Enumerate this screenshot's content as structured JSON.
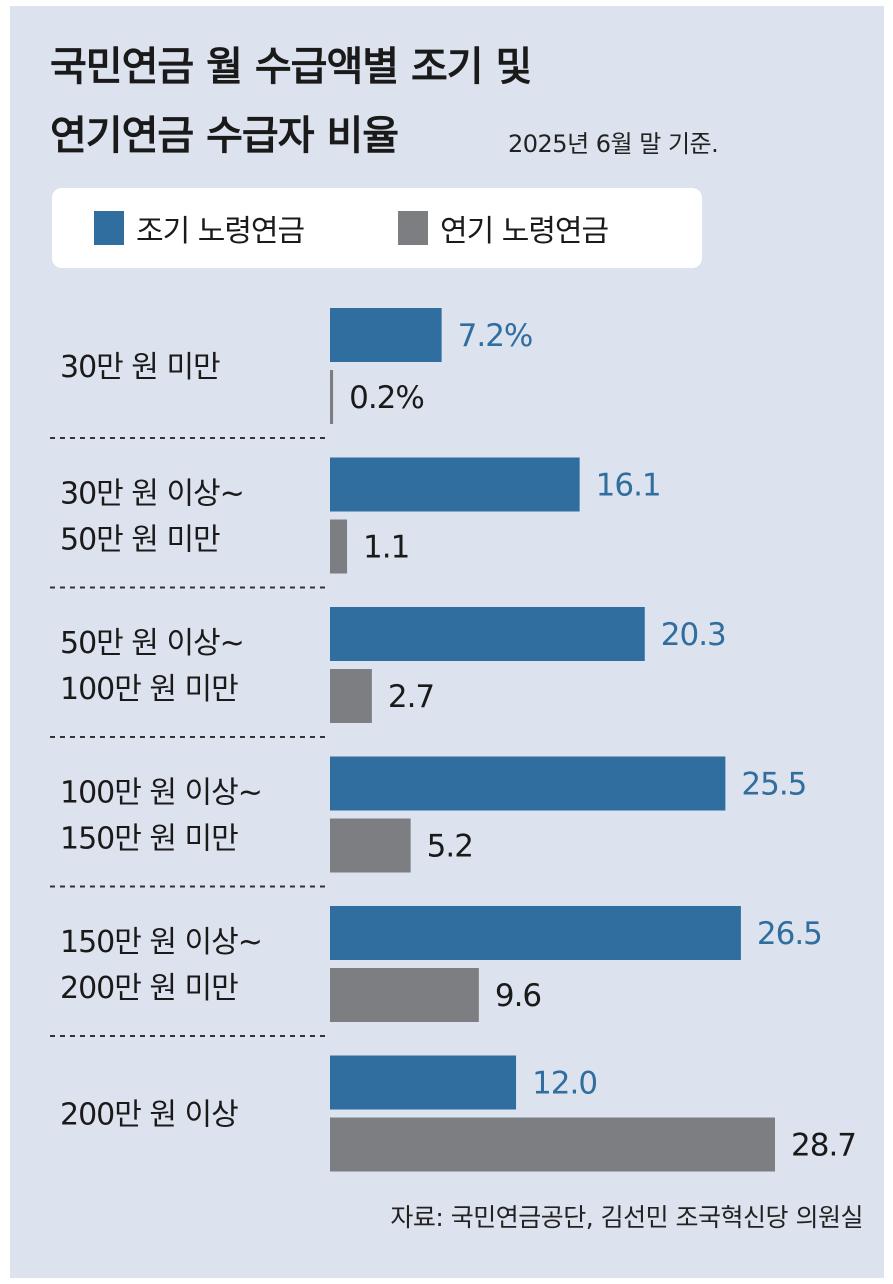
{
  "title_lines": [
    "국민연금 월 수급액별 조기 및",
    "연기연금 수급자 비율"
  ],
  "subtitle": "2025년 6월 말 기준.",
  "source": "자료: 국민연금공단, 김선민 조국혁신당 의원실",
  "colors": {
    "early": "#2f6e9f",
    "late": "#7d7e82",
    "background": "#dde3ee",
    "divider": "#333333"
  },
  "legend": [
    {
      "name": "조기 노령연금",
      "color": "#2f6e9f"
    },
    {
      "name": "연기 노령연금",
      "color": "#7d7e82"
    }
  ],
  "chart_data": {
    "type": "bar",
    "orientation": "horizontal",
    "title": "국민연금 월 수급액별 조기 및 연기연금 수급자 비율",
    "subtitle": "2025년 6월 말 기준.",
    "unit": "%",
    "categories": [
      [
        "30만 원 미만"
      ],
      [
        "30만 원 이상~",
        "50만 원 미만"
      ],
      [
        "50만 원 이상~",
        "100만 원 미만"
      ],
      [
        "100만 원 이상~",
        "150만 원 미만"
      ],
      [
        "150만 원 이상~",
        "200만 원 미만"
      ],
      [
        "200만 원 이상"
      ]
    ],
    "series": [
      {
        "name": "조기 노령연금",
        "color": "#2f6e9f",
        "values": [
          7.2,
          16.1,
          20.3,
          25.5,
          26.5,
          12.0
        ],
        "labels": [
          "7.2%",
          "16.1",
          "20.3",
          "25.5",
          "26.5",
          "12.0"
        ]
      },
      {
        "name": "연기 노령연금",
        "color": "#7d7e82",
        "values": [
          0.2,
          1.1,
          2.7,
          5.2,
          9.6,
          28.7
        ],
        "labels": [
          "0.2%",
          "1.1",
          "2.7",
          "5.2",
          "9.6",
          "28.7"
        ]
      }
    ],
    "xlim": [
      0,
      28.7
    ],
    "grid": false,
    "legend_position": "top-left"
  }
}
